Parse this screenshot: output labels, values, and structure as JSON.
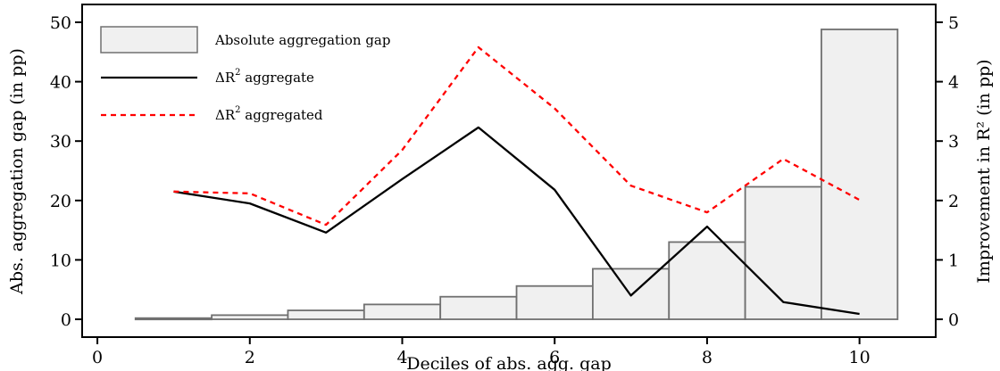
{
  "chart_data": {
    "type": "bar",
    "xlabel": "Deciles of abs. agg. gap",
    "ylabel_left": "Abs. aggregation gap (in pp)",
    "ylabel_right": "Improvement in R² (in pp)",
    "xlim": [
      -0.2,
      11.0
    ],
    "ylim_left": [
      -3,
      53
    ],
    "ylim_right": [
      -0.3,
      5.3
    ],
    "xticks": [
      0,
      2,
      4,
      6,
      8,
      10
    ],
    "yticks_left": [
      0,
      10,
      20,
      30,
      40,
      50
    ],
    "yticks_right": [
      0,
      1,
      2,
      3,
      4,
      5
    ],
    "grid": false,
    "legend_position": "top-left",
    "bars": {
      "name": "Absolute aggregation gap",
      "axis": "left",
      "x": [
        1,
        2,
        3,
        4,
        5,
        6,
        7,
        8,
        9,
        10
      ],
      "values": [
        0.2,
        0.7,
        1.5,
        2.5,
        3.8,
        5.6,
        8.5,
        13.0,
        22.3,
        48.8
      ],
      "fill": "#f0f0f0",
      "stroke": "#707070"
    },
    "series": [
      {
        "name": "ΔR² aggregate",
        "axis": "right",
        "x": [
          1,
          2,
          3,
          4,
          5,
          6,
          7,
          8,
          9,
          10
        ],
        "values": [
          2.15,
          1.95,
          1.46,
          2.36,
          3.23,
          2.18,
          0.4,
          1.56,
          0.29,
          0.09
        ],
        "color": "#000000",
        "dash": "solid"
      },
      {
        "name": "ΔR² aggregated",
        "axis": "right",
        "x": [
          1,
          2,
          3,
          4,
          5,
          6,
          7,
          8,
          9,
          10
        ],
        "values": [
          2.15,
          2.12,
          1.59,
          2.85,
          4.58,
          3.55,
          2.25,
          1.8,
          2.7,
          2.01
        ],
        "color": "#ff0000",
        "dash": "dotted"
      }
    ],
    "legend": [
      {
        "kind": "bar",
        "label": "Absolute aggregation gap"
      },
      {
        "kind": "line",
        "label_main": "ΔR",
        "label_sup": "2",
        "label_rest": " aggregate"
      },
      {
        "kind": "dotted",
        "label_main": "ΔR",
        "label_sup": "2",
        "label_rest": " aggregated"
      }
    ]
  }
}
